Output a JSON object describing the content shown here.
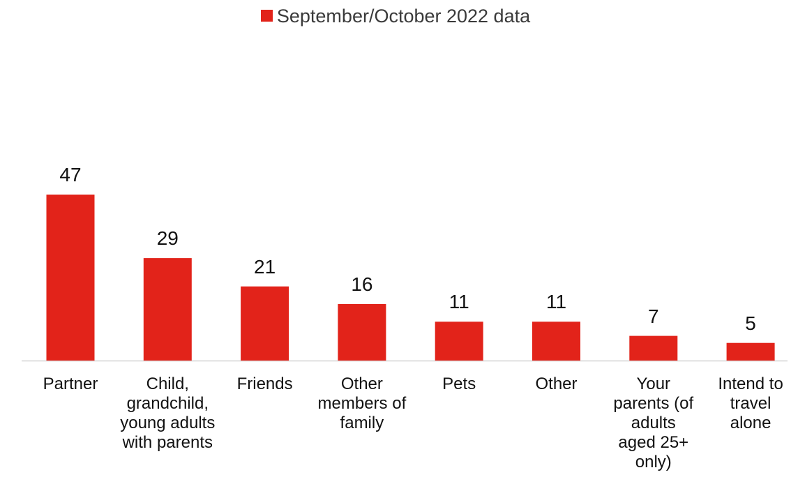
{
  "chart_data": {
    "type": "bar",
    "categories": [
      "Partner",
      "Child, grandchild, young adults with parents",
      "Friends",
      "Other members of family",
      "Pets",
      "Other",
      "Your parents (of adults aged 25+ only)",
      "Intend to travel alone"
    ],
    "series": [
      {
        "name": "September/October 2022 data",
        "values": [
          47,
          29,
          21,
          16,
          11,
          11,
          7,
          5
        ],
        "color": "#e2231a"
      }
    ],
    "data_labels": [
      "47",
      "29",
      "21",
      "16",
      "11",
      "11",
      "7",
      "5"
    ],
    "ylim": [
      0,
      47
    ],
    "legend_position": "top-center",
    "grid": false
  }
}
